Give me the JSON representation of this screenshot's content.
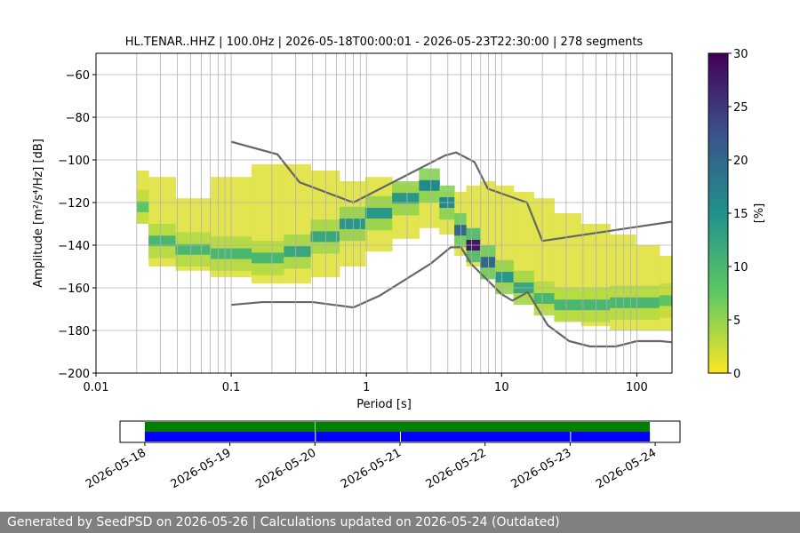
{
  "chart_data": [
    {
      "type": "heatmap",
      "title": "HL.TENAR..HHZ | 100.0Hz | 2026-05-18T00:00:01 - 2026-05-23T22:30:00 | 278 segments",
      "xlabel": "Period [s]",
      "ylabel": "Amplitude [m²/s⁴/Hz] [dB]",
      "xscale": "log",
      "grid": true,
      "xlim": [
        0.01,
        182
      ],
      "xticks": [
        0.01,
        0.1,
        1,
        10,
        100
      ],
      "xminor_ticks": [
        0.02,
        0.03,
        0.04,
        0.05,
        0.06,
        0.07,
        0.08,
        0.09,
        0.2,
        0.3,
        0.4,
        0.5,
        0.6,
        0.7,
        0.8,
        0.9,
        2,
        3,
        4,
        5,
        6,
        7,
        8,
        9,
        20,
        30,
        40,
        50,
        60,
        70,
        80,
        90
      ],
      "ylim": [
        -200,
        -50
      ],
      "yticks": [
        {
          "value": -200,
          "label": "−200"
        },
        {
          "value": -180,
          "label": "−180"
        },
        {
          "value": -160,
          "label": "−160"
        },
        {
          "value": -140,
          "label": "−140"
        },
        {
          "value": -120,
          "label": "−120"
        },
        {
          "value": -100,
          "label": "−100"
        },
        {
          "value": -80,
          "label": "−80"
        },
        {
          "value": -60,
          "label": "−60"
        }
      ],
      "density": {
        "x": [
          0.02,
          0.03,
          0.05,
          0.1,
          0.2,
          0.3,
          0.5,
          0.8,
          1.2,
          2,
          3,
          4,
          5,
          6,
          8,
          10,
          15,
          20,
          30,
          50,
          80,
          120,
          180
        ],
        "low": [
          -128,
          -150,
          -152,
          -155,
          -158,
          -158,
          -155,
          -150,
          -143,
          -137,
          -132,
          -135,
          -145,
          -150,
          -155,
          -160,
          -165,
          -170,
          -175,
          -178,
          -180,
          -180,
          -180
        ],
        "high": [
          -105,
          -108,
          -118,
          -108,
          -102,
          -102,
          -105,
          -110,
          -108,
          -112,
          -110,
          -115,
          -115,
          -112,
          -110,
          -112,
          -115,
          -118,
          -125,
          -130,
          -135,
          -140,
          -145
        ],
        "mode": [
          -122,
          -138,
          -142,
          -144,
          -146,
          -143,
          -136,
          -130,
          -125,
          -118,
          -112,
          -120,
          -133,
          -140,
          -148,
          -155,
          -160,
          -165,
          -168,
          -168,
          -167,
          -167,
          -166
        ],
        "peak": [
          8,
          10,
          10,
          10,
          10,
          12,
          12,
          14,
          14,
          14,
          16,
          16,
          20,
          28,
          20,
          14,
          12,
          10,
          10,
          10,
          10,
          10,
          8
        ]
      },
      "series": [
        {
          "color": "#666666",
          "x": [
            0.1,
            0.22,
            0.32,
            0.8,
            3.8,
            4.6,
            6.3,
            7.9,
            15.4,
            20,
            180
          ],
          "values": [
            -91.5,
            -97.4,
            -110.5,
            -120,
            -98,
            -96.5,
            -101,
            -113.5,
            -120,
            -138,
            -129
          ]
        },
        {
          "color": "#666666",
          "x": [
            0.1,
            0.17,
            0.4,
            0.8,
            1.25,
            3,
            4.2,
            5,
            6,
            10,
            12,
            15.6,
            21.9,
            31.6,
            45,
            70,
            100,
            150,
            180
          ],
          "values": [
            -168,
            -166.7,
            -166.7,
            -169.2,
            -163.7,
            -148.6,
            -141,
            -141,
            -149,
            -163,
            -166,
            -162,
            -177.5,
            -185,
            -187.5,
            -187.5,
            -185,
            -185,
            -185.5
          ]
        }
      ],
      "colorbar": {
        "label": "[%]",
        "colormap": "viridis_r",
        "lim": [
          0,
          30
        ],
        "ticks": [
          0,
          5,
          10,
          15,
          20,
          25,
          30
        ]
      }
    },
    {
      "type": "timeline",
      "xlim": [
        "2026-05-17T17:00:00",
        "2026-05-24T07:00:00"
      ],
      "xticks": [
        "2026-05-18",
        "2026-05-19",
        "2026-05-20",
        "2026-05-21",
        "2026-05-22",
        "2026-05-23",
        "2026-05-24"
      ],
      "rows": [
        {
          "color": "#008000",
          "segments": [
            [
              "2026-05-18T00:00:01",
              "2026-05-19T23:55:00"
            ],
            [
              "2026-05-20T00:05:00",
              "2026-05-23T22:30:00"
            ]
          ]
        },
        {
          "color": "#0000ff",
          "segments": [
            [
              "2026-05-18T00:00:01",
              "2026-05-20T00:00:00"
            ],
            [
              "2026-05-20T00:15:00",
              "2026-05-21T00:00:00"
            ],
            [
              "2026-05-21T00:15:00",
              "2026-05-23T00:00:00"
            ],
            [
              "2026-05-23T00:15:00",
              "2026-05-23T22:30:00"
            ]
          ]
        }
      ]
    }
  ],
  "footer": "Generated by SeedPSD on 2026-05-26 | Calculations updated on 2026-05-24 (Outdated)"
}
